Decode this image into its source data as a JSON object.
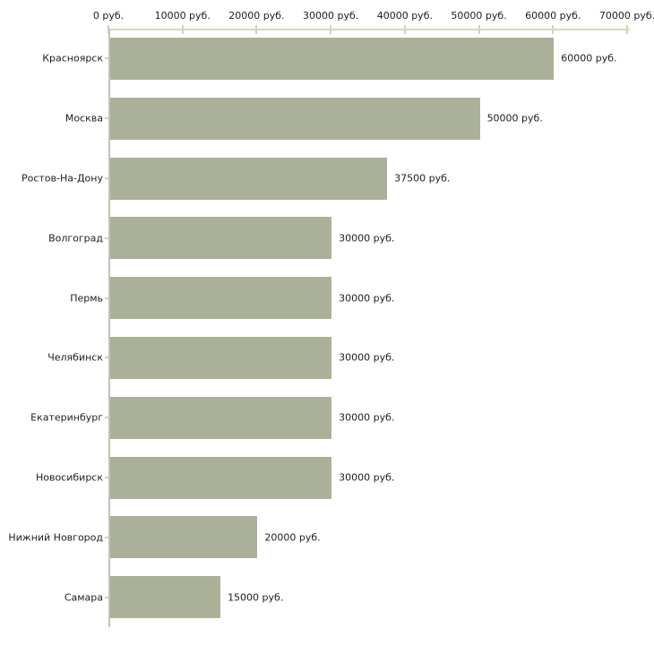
{
  "chart_data": {
    "type": "bar",
    "orientation": "horizontal",
    "title": "",
    "xlabel": "",
    "ylabel": "",
    "unit": "руб.",
    "categories": [
      "Красноярск",
      "Москва",
      "Ростов-На-Дону",
      "Волгоград",
      "Пермь",
      "Челябинск",
      "Екатеринбург",
      "Новосибирск",
      "Нижний Новгород",
      "Самара"
    ],
    "values": [
      60000,
      50000,
      37500,
      30000,
      30000,
      30000,
      30000,
      30000,
      20000,
      15000
    ],
    "value_labels": [
      "60000 руб.",
      "50000 руб.",
      "37500 руб.",
      "30000 руб.",
      "30000 руб.",
      "30000 руб.",
      "30000 руб.",
      "30000 руб.",
      "20000 руб.",
      "15000 руб."
    ],
    "x_tick_values": [
      0,
      10000,
      20000,
      30000,
      40000,
      50000,
      60000,
      70000
    ],
    "x_tick_labels": [
      "0 руб.",
      "10000 руб.",
      "20000 руб.",
      "30000 руб.",
      "40000 руб.",
      "50000 руб.",
      "60000 руб.",
      "70000 руб."
    ],
    "xlim": [
      0,
      70000
    ],
    "grid": false,
    "legend": false,
    "bar_color": "#abb198",
    "axis_color": "#d9d6c1",
    "text_color": "#1d1d1d",
    "background_color": "#ffffff"
  }
}
